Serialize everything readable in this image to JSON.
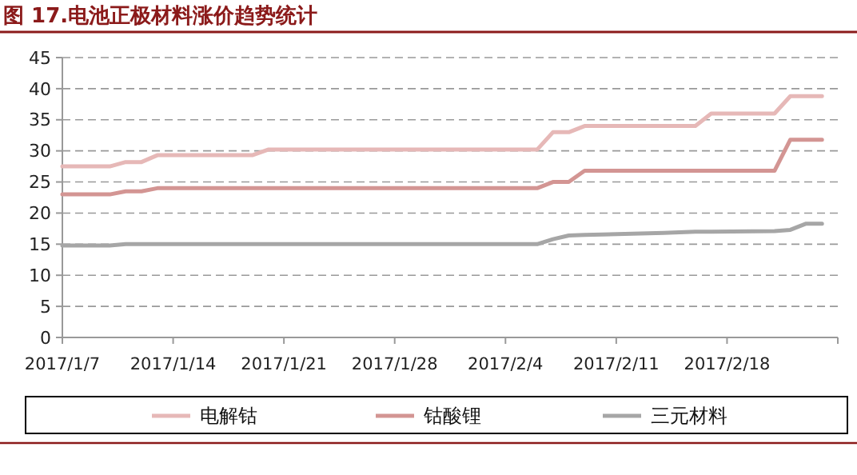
{
  "chart_data": {
    "type": "line",
    "title": "图 17.电池正极材料涨价趋势统计",
    "x": [
      "2017-01-07",
      "2017-01-10",
      "2017-01-11",
      "2017-01-12",
      "2017-01-13",
      "2017-01-19",
      "2017-01-20",
      "2017-02-06",
      "2017-02-07",
      "2017-02-08",
      "2017-02-09",
      "2017-02-14",
      "2017-02-16",
      "2017-02-17",
      "2017-02-21",
      "2017-02-22",
      "2017-02-23",
      "2017-02-24"
    ],
    "series": [
      {
        "name": "电解钴",
        "color": "#e6b8b7",
        "values": [
          27.5,
          27.5,
          28.2,
          28.2,
          29.3,
          29.3,
          30.2,
          30.2,
          33,
          33,
          34,
          34,
          34,
          36,
          36,
          38.8,
          38.8,
          38.8
        ]
      },
      {
        "name": "钴酸锂",
        "color": "#d39593",
        "values": [
          23,
          23,
          23.5,
          23.5,
          24,
          24,
          24,
          24,
          25,
          25,
          26.8,
          26.8,
          26.8,
          26.8,
          26.8,
          31.8,
          31.8,
          31.8
        ]
      },
      {
        "name": "三元材料",
        "color": "#a6a6a6",
        "values": [
          14.8,
          14.8,
          15,
          15,
          15,
          15,
          15,
          15,
          15.8,
          16.4,
          16.5,
          16.8,
          17,
          17,
          17.1,
          17.3,
          18.3,
          18.3
        ]
      }
    ],
    "xlim": [
      "2017-01-07",
      "2017-02-25"
    ],
    "xticks": [
      {
        "value": "2017-01-07",
        "label": "2017/1/7"
      },
      {
        "value": "2017-01-14",
        "label": "2017/1/14"
      },
      {
        "value": "2017-01-21",
        "label": "2017/1/21"
      },
      {
        "value": "2017-01-28",
        "label": "2017/1/28"
      },
      {
        "value": "2017-02-04",
        "label": "2017/2/4"
      },
      {
        "value": "2017-02-11",
        "label": "2017/2/11"
      },
      {
        "value": "2017-02-18",
        "label": "2017/2/18"
      }
    ],
    "ylim": [
      0,
      45
    ],
    "yticks": [
      0,
      5,
      10,
      15,
      20,
      25,
      30,
      35,
      40,
      45
    ],
    "grid": "y",
    "legend": "bottom",
    "marker": "none",
    "line_style": "solid"
  }
}
